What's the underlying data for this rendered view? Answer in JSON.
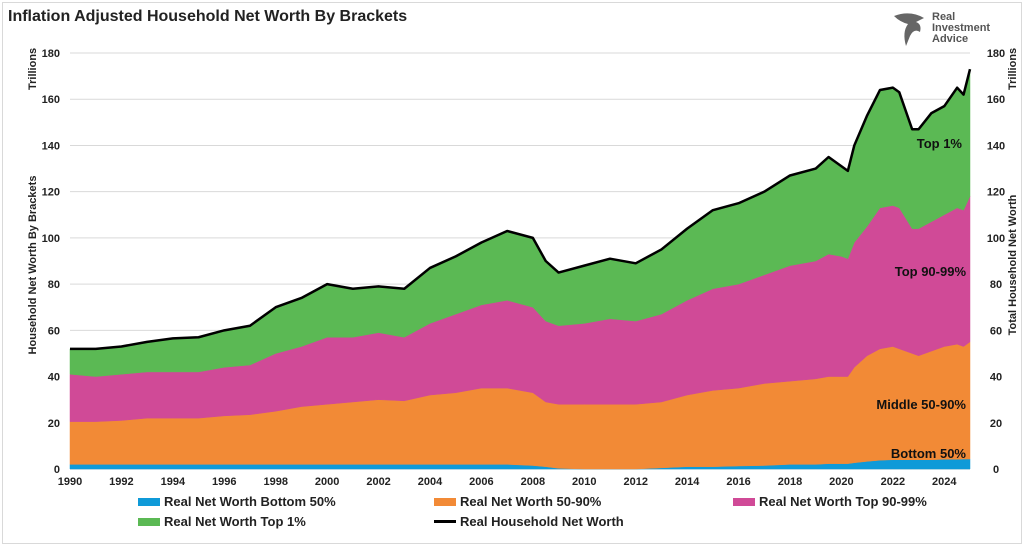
{
  "chart_data": {
    "type": "area",
    "stacked": true,
    "title": "Inflation Adjusted Household Net Worth By Brackets",
    "ylabel_left": "Household Net Worth By Brackets",
    "yunit_left": "Trillions",
    "ylabel_right": "Total Household Net Worth",
    "yunit_right": "Trillions",
    "ylim": [
      0,
      180
    ],
    "yticks": [
      0,
      20,
      40,
      60,
      80,
      100,
      120,
      140,
      160,
      180
    ],
    "xlim": [
      1990,
      2025
    ],
    "xticks": [
      "1990",
      "1992",
      "1994",
      "1996",
      "1998",
      "2000",
      "2002",
      "2004",
      "2006",
      "2008",
      "2010",
      "2012",
      "2014",
      "2016",
      "2018",
      "2020",
      "2022",
      "2024"
    ],
    "grid": true,
    "legend_position": "bottom",
    "x": [
      1990,
      1991,
      1992,
      1993,
      1994,
      1995,
      1996,
      1997,
      1998,
      1999,
      2000,
      2001,
      2002,
      2003,
      2004,
      2005,
      2006,
      2007,
      2008,
      2008.5,
      2009,
      2010,
      2011,
      2012,
      2013,
      2014,
      2015,
      2016,
      2017,
      2018,
      2019,
      2019.5,
      2020,
      2020.25,
      2020.5,
      2021,
      2021.5,
      2022,
      2022.25,
      2022.75,
      2023,
      2023.5,
      2024,
      2024.5,
      2024.75,
      2025
    ],
    "series": [
      {
        "name": "Real Net Worth Bottom 50%",
        "color": "#0f9ad8",
        "values": [
          2,
          2,
          2,
          2,
          2,
          2,
          2,
          2,
          2,
          2,
          2,
          2,
          2,
          2,
          2,
          2,
          2,
          2,
          1.5,
          1,
          0.3,
          0,
          0,
          0,
          0.5,
          1,
          1,
          1.3,
          1.5,
          2,
          2,
          2.3,
          2.3,
          2.3,
          2.7,
          3.3,
          3.8,
          4,
          4,
          4,
          4,
          4,
          4.2,
          4.2,
          4.3,
          4.3
        ]
      },
      {
        "name": "Real Net Worth 50-90%",
        "color": "#f28a36",
        "values": [
          18.5,
          18.5,
          19,
          20,
          20,
          20,
          21,
          21.5,
          23,
          25,
          26,
          27,
          28,
          27.5,
          30,
          31,
          33,
          33,
          31.5,
          28,
          27.7,
          28,
          28,
          28,
          28.5,
          31,
          33,
          33.7,
          35.5,
          36,
          37,
          37.7,
          37.7,
          37.7,
          41.3,
          45.7,
          48.2,
          49,
          48,
          46,
          45,
          47,
          48.8,
          49.8,
          48.7,
          50.7
        ]
      },
      {
        "name": "Real Net Worth Top 90-99%",
        "color": "#d04a97",
        "values": [
          20.5,
          19.5,
          20,
          20,
          20,
          20,
          21,
          21.5,
          25,
          26,
          29,
          28,
          29,
          27.5,
          31,
          34,
          36,
          38,
          37,
          35,
          34,
          35,
          37,
          36,
          38,
          41,
          44,
          45,
          47,
          50,
          51,
          53,
          52,
          51,
          54,
          56,
          61,
          61,
          61,
          54,
          55,
          56,
          57,
          59,
          59,
          63
        ]
      },
      {
        "name": "Real Net Worth Top 1%",
        "color": "#5bb954",
        "values": [
          11,
          12,
          12,
          13,
          14.5,
          15,
          16,
          17,
          20,
          21,
          23,
          21,
          20,
          21,
          24,
          25,
          27,
          30,
          30,
          26,
          23,
          25,
          26,
          25,
          28,
          31,
          34,
          35,
          36,
          39,
          40,
          42,
          39,
          38,
          42,
          48,
          51,
          51,
          50,
          43,
          43,
          47,
          47,
          52,
          50,
          55
        ]
      }
    ],
    "line": {
      "name": "Real Household Net Worth",
      "color": "#000000",
      "values": [
        52,
        52,
        53,
        55,
        56.5,
        57,
        60,
        62,
        70,
        74,
        80,
        78,
        79,
        78,
        87,
        92,
        98,
        103,
        100,
        90,
        85,
        88,
        91,
        89,
        95,
        104,
        112,
        115,
        120,
        127,
        130,
        135,
        131,
        129,
        140,
        153,
        164,
        165,
        163,
        147,
        147,
        154,
        157,
        165,
        162,
        173
      ]
    },
    "annotations": [
      "Top 1%",
      "Top 90-99%",
      "Middle 50-90%",
      "Bottom 50%"
    ]
  },
  "logo": {
    "line1": "Real",
    "line2": "Investment",
    "line3": "Advice"
  }
}
